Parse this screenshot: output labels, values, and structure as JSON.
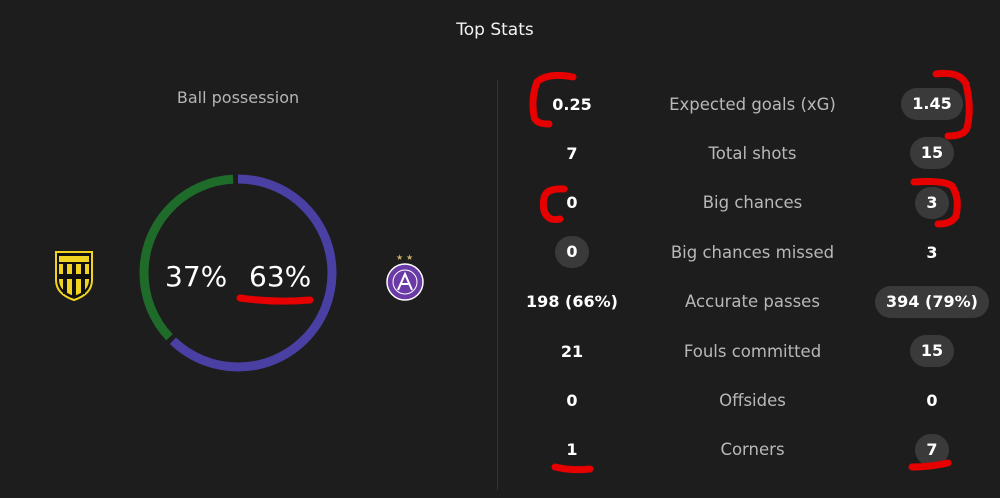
{
  "header": {
    "title": "Top Stats"
  },
  "possession": {
    "label": "Ball possession",
    "home_pct": "37%",
    "away_pct": "63%",
    "home_share": 0.37,
    "away_share": 0.63,
    "home_color": "#1e6b2a",
    "away_color": "#4a40a3"
  },
  "teams": {
    "home": {
      "crest_text": "AUSTRIA LUSTENAU",
      "color": "#f1d421"
    },
    "away": {
      "crest_text": "FK AUSTRIA WIEN",
      "color": "#6a3aa6"
    }
  },
  "stats": [
    {
      "label": "Expected goals (xG)",
      "home": "0.25",
      "away": "1.45",
      "home_pill": false,
      "away_pill": true
    },
    {
      "label": "Total shots",
      "home": "7",
      "away": "15",
      "home_pill": false,
      "away_pill": true
    },
    {
      "label": "Big chances",
      "home": "0",
      "away": "3",
      "home_pill": false,
      "away_pill": true
    },
    {
      "label": "Big chances missed",
      "home": "0",
      "away": "3",
      "home_pill": true,
      "away_pill": false
    },
    {
      "label": "Accurate passes",
      "home": "198 (66%)",
      "away": "394 (79%)",
      "home_pill": false,
      "away_pill": true
    },
    {
      "label": "Fouls committed",
      "home": "21",
      "away": "15",
      "home_pill": false,
      "away_pill": true
    },
    {
      "label": "Offsides",
      "home": "0",
      "away": "0",
      "home_pill": false,
      "away_pill": false
    },
    {
      "label": "Corners",
      "home": "1",
      "away": "7",
      "home_pill": false,
      "away_pill": true
    }
  ],
  "annotation_color": "#e60000"
}
